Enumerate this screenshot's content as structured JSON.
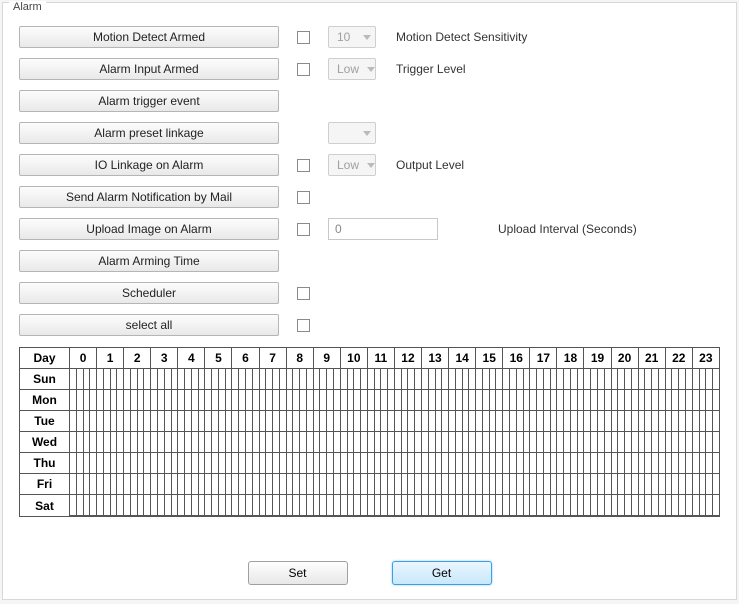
{
  "groupLabel": "Alarm",
  "rows": {
    "motionDetect": {
      "label": "Motion Detect Armed",
      "checked": false,
      "dropdown": "10",
      "rightLabel": "Motion Detect Sensitivity"
    },
    "alarmInput": {
      "label": "Alarm Input Armed",
      "checked": false,
      "dropdown": "Low",
      "rightLabel": "Trigger Level"
    },
    "triggerEvent": {
      "label": "Alarm trigger event"
    },
    "presetLinkage": {
      "label": "Alarm preset linkage",
      "dropdown": ""
    },
    "ioLinkage": {
      "label": "IO Linkage on Alarm",
      "checked": false,
      "dropdown": "Low",
      "rightLabel": "Output Level"
    },
    "sendMail": {
      "label": "Send Alarm Notification by Mail",
      "checked": false
    },
    "uploadImage": {
      "label": "Upload Image on Alarm",
      "checked": false,
      "inputValue": "0",
      "rightLabel": "Upload Interval (Seconds)"
    },
    "armingTime": {
      "label": "Alarm Arming Time"
    },
    "scheduler": {
      "label": "Scheduler",
      "checked": false
    },
    "selectAll": {
      "label": "select all",
      "checked": false
    }
  },
  "schedule": {
    "dayHeader": "Day",
    "hours": [
      "0",
      "1",
      "2",
      "3",
      "4",
      "5",
      "6",
      "7",
      "8",
      "9",
      "10",
      "11",
      "12",
      "13",
      "14",
      "15",
      "16",
      "17",
      "18",
      "19",
      "20",
      "21",
      "22",
      "23"
    ],
    "days": [
      "Sun",
      "Mon",
      "Tue",
      "Wed",
      "Thu",
      "Fri",
      "Sat"
    ],
    "subSlotsPerHour": 4
  },
  "buttons": {
    "set": "Set",
    "get": "Get"
  },
  "colors": {
    "panelBorder": "#d8d8d8",
    "buttonGradientTop": "#fdfdfd",
    "buttonGradientBottom": "#e9e9e9",
    "buttonBorder": "#b5b5b5",
    "gridBorder": "#555555",
    "primaryBorder": "#3c9fe0",
    "primaryBgTop": "#eaf6ff",
    "primaryBgBottom": "#c8e8fb",
    "text": "#222222",
    "background": "#ffffff"
  }
}
